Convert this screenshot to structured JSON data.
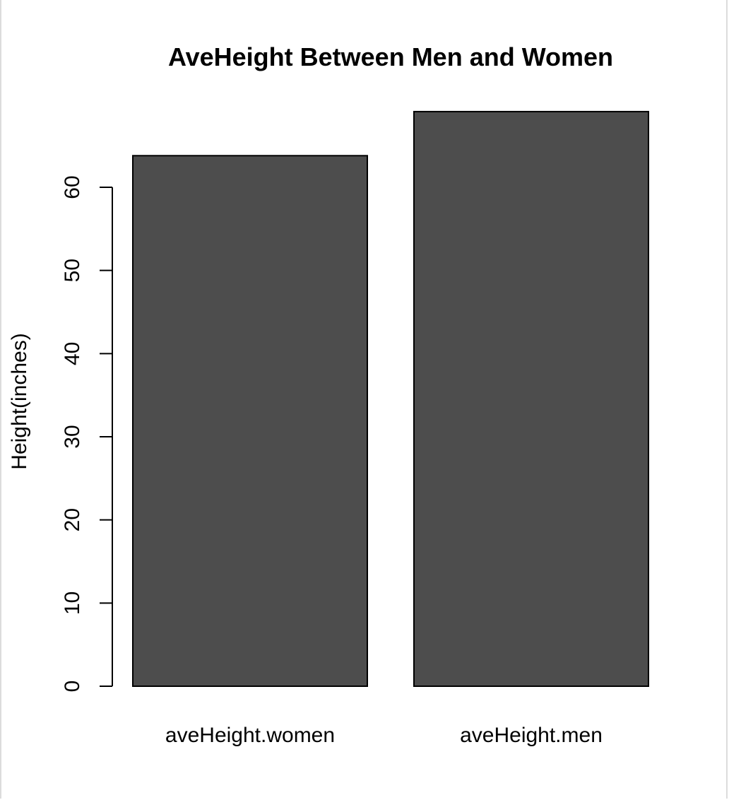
{
  "chart_data": {
    "type": "bar",
    "title": "AveHeight Between Men and Women",
    "xlabel": "",
    "ylabel": "Height(inches)",
    "categories": [
      "aveHeight.women",
      "aveHeight.men"
    ],
    "values": [
      63.8,
      69.1
    ],
    "ylim": [
      0,
      69.1
    ],
    "yticks": [
      0,
      10,
      20,
      30,
      40,
      50,
      60
    ],
    "grid": false,
    "bar_color": "#4d4d4d",
    "bar_border_color": "#000000"
  }
}
